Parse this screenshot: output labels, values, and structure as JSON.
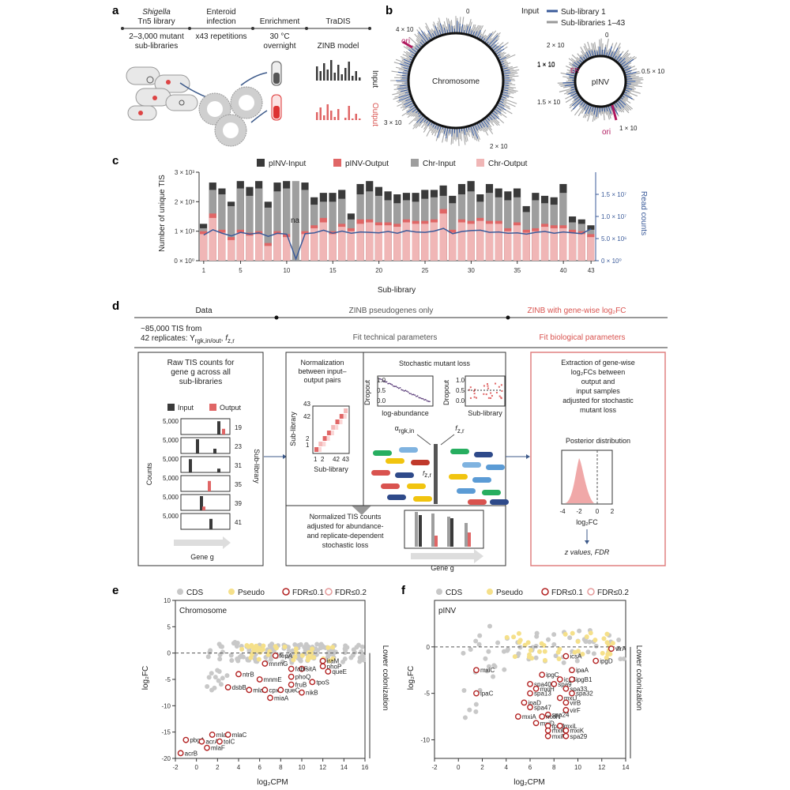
{
  "panels": {
    "a": "a",
    "b": "b",
    "c": "c",
    "d": "d",
    "e": "e",
    "f": "f"
  },
  "a": {
    "stages": [
      "Shigella",
      "Tn5 library",
      "Enteroid",
      "infection",
      "Enrichment",
      "TraDIS"
    ],
    "sub": [
      "2–3,000 mutant",
      "sub-libraries",
      "x43 repetitions",
      "30 °C",
      "overnight",
      "ZINB model"
    ],
    "input": "Input",
    "output": "Output"
  },
  "b": {
    "legend_title": "Input",
    "legend1": "Sub-library 1",
    "legend2": "Sub-libraries 1–43",
    "chrom": "Chromosome",
    "pinv": "pINV",
    "ori": "ori",
    "er": "ER",
    "chr_ticks": [
      "0",
      "1 × 10",
      "1.5 × 10",
      "2 × 10",
      "3 × 10",
      "4 × 10"
    ],
    "p_ticks": [
      "0",
      "2 × 10",
      "1 × 10",
      "0.5 × 10",
      "1 × 10"
    ]
  },
  "chart_data": [
    {
      "type": "bar",
      "title": "",
      "xlabel": "Sub-library",
      "ylabel": "Number of unique TIS",
      "y2label": "Read counts",
      "ylim": [
        0,
        3000
      ],
      "y2lim": [
        0,
        20000000
      ],
      "yticks": [
        "0 × 10⁰",
        "1 × 10³",
        "2 × 10³",
        "3 × 10³"
      ],
      "y2ticks": [
        "0 × 10⁰",
        "5.0 × 10⁶",
        "1.0 × 10⁷",
        "1.5 × 10⁷"
      ],
      "xticks": [
        "1",
        "5",
        "10",
        "15",
        "20",
        "25",
        "30",
        "35",
        "40",
        "43"
      ],
      "na_label": "na",
      "legend": [
        "pINV-Input",
        "pINV-Output",
        "Chr-Input",
        "Chr-Output"
      ],
      "categories": [
        1,
        2,
        3,
        4,
        5,
        6,
        7,
        8,
        9,
        10,
        11,
        12,
        13,
        14,
        15,
        16,
        17,
        18,
        19,
        20,
        21,
        22,
        23,
        24,
        25,
        26,
        27,
        28,
        29,
        30,
        31,
        32,
        33,
        34,
        35,
        36,
        37,
        38,
        39,
        40,
        41,
        42,
        43
      ],
      "series": [
        {
          "name": "pINV-Input",
          "values": [
            1250,
            2650,
            2450,
            2000,
            2700,
            2500,
            2700,
            2000,
            2650,
            2700,
            0,
            2650,
            2150,
            2300,
            2300,
            2400,
            1600,
            2600,
            2700,
            2500,
            2350,
            2250,
            2300,
            2300,
            2400,
            2400,
            2550,
            2200,
            2600,
            2700,
            2250,
            2600,
            2450,
            2350,
            2450,
            1850,
            2300,
            2200,
            2150,
            2600,
            1500,
            1400,
            1200
          ]
        },
        {
          "name": "pINV-Output",
          "values": [
            1000,
            1600,
            1050,
            800,
            1050,
            950,
            1000,
            600,
            1000,
            900,
            0,
            1000,
            1200,
            1450,
            1000,
            1250,
            1100,
            1400,
            1400,
            1300,
            1300,
            1250,
            1400,
            1350,
            1350,
            1400,
            1750,
            1050,
            1400,
            1350,
            1450,
            1350,
            1350,
            1100,
            1300,
            1050,
            1100,
            1250,
            1200,
            1200,
            1050,
            1000,
            900
          ]
        },
        {
          "name": "Chr-Input",
          "values": [
            1100,
            2400,
            2250,
            1850,
            2450,
            2200,
            2450,
            1800,
            2350,
            2450,
            2700,
            2400,
            1900,
            2000,
            2000,
            2100,
            1400,
            2250,
            2350,
            2200,
            2050,
            1950,
            2050,
            2000,
            2100,
            2150,
            2200,
            1950,
            2250,
            2350,
            2000,
            2300,
            2150,
            2050,
            2150,
            1650,
            2050,
            1950,
            1900,
            2300,
            1300,
            1250,
            1050
          ]
        },
        {
          "name": "Chr-Output",
          "values": [
            900,
            1450,
            950,
            700,
            950,
            850,
            900,
            500,
            900,
            800,
            0,
            900,
            1100,
            1300,
            900,
            1150,
            1000,
            1250,
            1300,
            1200,
            1200,
            1150,
            1300,
            1250,
            1250,
            1300,
            1600,
            950,
            1300,
            1250,
            1350,
            1250,
            1250,
            1000,
            1200,
            950,
            1000,
            1150,
            1100,
            1100,
            950,
            900,
            800
          ]
        },
        {
          "name": "Read counts",
          "values": [
            5800000,
            7000000,
            6200000,
            5600000,
            6400000,
            6000000,
            6300000,
            5500000,
            6200000,
            6000000,
            400000,
            6100000,
            6300000,
            6900000,
            6200000,
            6700000,
            6200000,
            6500000,
            6400000,
            6300000,
            6600000,
            6200000,
            6800000,
            6500000,
            6400000,
            6700000,
            7300000,
            6100000,
            6600000,
            6800000,
            6900000,
            6400000,
            6500000,
            6200000,
            6300000,
            6000000,
            6400000,
            6600000,
            6200000,
            6500000,
            6300000,
            6100000,
            7200000
          ]
        }
      ]
    },
    {
      "type": "scatter",
      "title": "Chromosome",
      "xlabel": "log₂CPM",
      "ylabel": "log₂FC",
      "xlim": [
        -2,
        16
      ],
      "ylim": [
        -20,
        10
      ],
      "xticks": [
        "-2",
        "0",
        "2",
        "4",
        "6",
        "8",
        "10",
        "12",
        "14",
        "16"
      ],
      "yticks": [
        "10",
        "5",
        "0",
        "-5",
        "-10",
        "-15",
        "-20"
      ],
      "legend": [
        "CDS",
        "Pseudo",
        "FDR≤0.1",
        "FDR≤0.2"
      ],
      "side_label": "Lower colonization",
      "labeled_genes": [
        {
          "label": "fepA",
          "x": 7.5,
          "y": -0.5
        },
        {
          "label": "mnmG",
          "x": 6.5,
          "y": -2
        },
        {
          "label": "iraM",
          "x": 12,
          "y": -1.5
        },
        {
          "label": "phoP",
          "x": 12,
          "y": -2.5
        },
        {
          "label": "queE",
          "x": 12.5,
          "y": -3.5
        },
        {
          "label": "sitA",
          "x": 10,
          "y": -3
        },
        {
          "label": "fabF",
          "x": 9,
          "y": -3
        },
        {
          "label": "ntrB",
          "x": 4,
          "y": -4
        },
        {
          "label": "mnmE",
          "x": 6,
          "y": -5
        },
        {
          "label": "phoQ",
          "x": 9,
          "y": -4.5
        },
        {
          "label": "tpoS",
          "x": 11,
          "y": -5.5
        },
        {
          "label": "dsbB",
          "x": 3,
          "y": -6.5
        },
        {
          "label": "mlaA",
          "x": 5,
          "y": -7
        },
        {
          "label": "fruB",
          "x": 9,
          "y": -6
        },
        {
          "label": "cpxR",
          "x": 6.5,
          "y": -7
        },
        {
          "label": "queC",
          "x": 8,
          "y": -7
        },
        {
          "label": "nikB",
          "x": 10,
          "y": -7.5
        },
        {
          "label": "miaA",
          "x": 7,
          "y": -8.5
        },
        {
          "label": "pbgA",
          "x": -1,
          "y": -16.5
        },
        {
          "label": "mlaE",
          "x": 1.5,
          "y": -15.5
        },
        {
          "label": "mlaC",
          "x": 3,
          "y": -15.5
        },
        {
          "label": "acrA",
          "x": 0.5,
          "y": -16.8
        },
        {
          "label": "tolC",
          "x": 2.2,
          "y": -16.8
        },
        {
          "label": "mlaF",
          "x": 1,
          "y": -18
        },
        {
          "label": "acrB",
          "x": -1.5,
          "y": -19
        }
      ]
    },
    {
      "type": "scatter",
      "title": "pINV",
      "xlabel": "log₂CPM",
      "ylabel": "log₂FC",
      "xlim": [
        -2,
        14
      ],
      "ylim": [
        -12,
        5
      ],
      "xticks": [
        "-2",
        "0",
        "2",
        "4",
        "6",
        "8",
        "10",
        "12",
        "14"
      ],
      "yticks": [
        "0",
        "-5",
        "-10"
      ],
      "legend": [
        "CDS",
        "Pseudo",
        "FDR≤0.1",
        "FDR≤0.2"
      ],
      "side_label": "Lower colonization",
      "labeled_genes": [
        {
          "label": "virA",
          "x": 12.8,
          "y": -0.2
        },
        {
          "label": "icsA",
          "x": 9,
          "y": -1
        },
        {
          "label": "ipgD",
          "x": 11.5,
          "y": -1.5
        },
        {
          "label": "ipaA",
          "x": 9.5,
          "y": -2.5
        },
        {
          "label": "mxiC",
          "x": 1.5,
          "y": -2.5
        },
        {
          "label": "ipgC",
          "x": 7,
          "y": -3
        },
        {
          "label": "icsB",
          "x": 8.5,
          "y": -3.5
        },
        {
          "label": "ipgB1",
          "x": 9.5,
          "y": -3.5
        },
        {
          "label": "spa40",
          "x": 6,
          "y": -4
        },
        {
          "label": "spa9",
          "x": 8,
          "y": -4
        },
        {
          "label": "mxiH",
          "x": 6.5,
          "y": -4.5
        },
        {
          "label": "spa33",
          "x": 9,
          "y": -4.5
        },
        {
          "label": "ipaC",
          "x": 1.5,
          "y": -5
        },
        {
          "label": "spa32",
          "x": 9.5,
          "y": -5
        },
        {
          "label": "spa13",
          "x": 6,
          "y": -5
        },
        {
          "label": "mxiJ",
          "x": 8.5,
          "y": -5.5
        },
        {
          "label": "virB",
          "x": 9,
          "y": -6
        },
        {
          "label": "ipaD",
          "x": 5.5,
          "y": -6
        },
        {
          "label": "spa47",
          "x": 6,
          "y": -6.5
        },
        {
          "label": "virF",
          "x": 9,
          "y": -6.8
        },
        {
          "label": "spa24",
          "x": 7.5,
          "y": -7.3
        },
        {
          "label": "mxiA",
          "x": 5,
          "y": -7.5
        },
        {
          "label": "mxiN",
          "x": 7,
          "y": -7.5
        },
        {
          "label": "mxiD",
          "x": 6.5,
          "y": -8.2
        },
        {
          "label": "ipaB",
          "x": 7.5,
          "y": -8.5
        },
        {
          "label": "mxiL",
          "x": 8.5,
          "y": -8.5
        },
        {
          "label": "mxiG",
          "x": 7.5,
          "y": -9
        },
        {
          "label": "mxiK",
          "x": 9,
          "y": -9
        },
        {
          "label": "mxiM",
          "x": 7.5,
          "y": -9.6
        },
        {
          "label": "spa29",
          "x": 9,
          "y": -9.6
        }
      ]
    }
  ],
  "d": {
    "h_data": "Data",
    "h_zinb": "ZINB pseudogenes only",
    "h_zinb2": "ZINB with gene-wise log₂FC",
    "tis1": "~85,000 TIS from",
    "tis2": "42 replicates: Y",
    "tis_sub": "rgk,in/out",
    "tis_f": "f",
    "tis_fsub": "z,r",
    "fit_tech": "Fit technical parameters",
    "fit_bio": "Fit biological parameters",
    "raw1": "Raw TIS counts for",
    "raw2": "gene g across all",
    "raw3": "sub-libraries",
    "leg_in": "Input",
    "leg_out": "Output",
    "ytick": "5,000",
    "counts": "Counts",
    "sublib": "Sub-library",
    "gene": "Gene g",
    "rows": [
      "19",
      "23",
      "31",
      "35",
      "39",
      "41"
    ],
    "norm1": "Normalization",
    "norm2": "between input–",
    "norm3": "output pairs",
    "sublib_axis": "Sub-library",
    "mat_ticks": [
      "1",
      "2",
      "42",
      "43"
    ],
    "stoch": "Stochastic mutant loss",
    "dropout": "Dropout",
    "dtick1": "1.0",
    "dtick2": "0.5",
    "dtick3": "0.0",
    "logab": "log-abundance",
    "alpha": "α",
    "alpha_sub": "rgk,in",
    "fzr": "f",
    "fzr_sub": "z,r",
    "normtis1": "Normalized TIS counts",
    "normtis2": "adjusted for abundance-",
    "normtis3": "and replicate-dependent",
    "normtis4": "stochastic loss",
    "extr1": "Extraction of gene-wise",
    "extr2": "log₂FCs between",
    "extr3": "output and",
    "extr4": "input samples",
    "extr5": "adjusted for stochastic",
    "extr6": "mutant loss",
    "posterior": "Posterior distribution",
    "post_ticks": [
      "-4",
      "-2",
      "0",
      "2"
    ],
    "log2fc": "log₂FC",
    "zfdr": "z values, FDR"
  },
  "colors": {
    "input": "#3a3a3a",
    "output": "#e06666",
    "chr_in": "#9e9e9e",
    "chr_out": "#f0b6b6",
    "line": "#3b5b9a",
    "fdr": "#b22222",
    "pseudo": "#f5e08a",
    "cds": "#c8c8c8"
  }
}
